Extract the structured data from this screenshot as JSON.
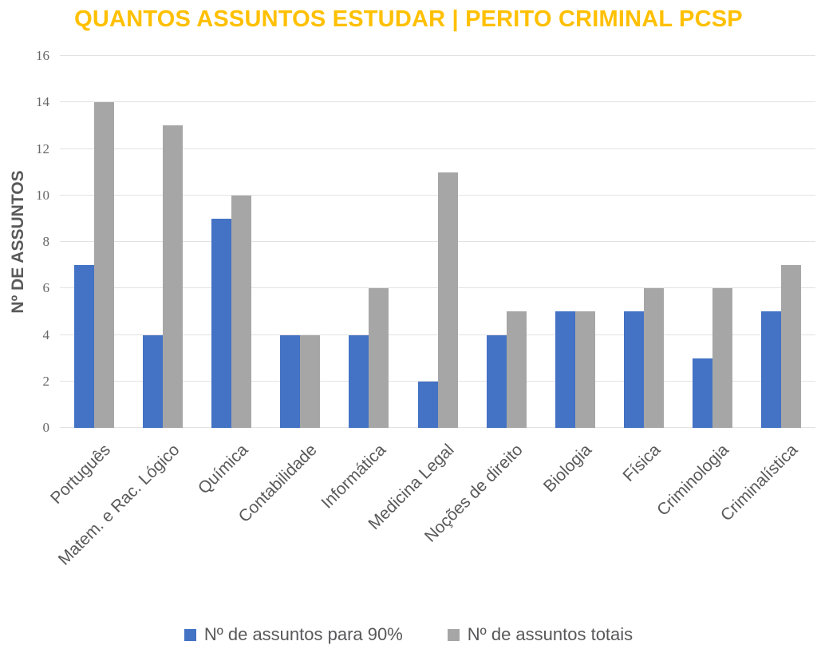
{
  "chart_data": {
    "type": "bar",
    "title": "QUANTOS ASSUNTOS ESTUDAR | PERITO CRIMINAL PCSP",
    "ylabel": "Nº DE ASSUNTOS",
    "xlabel": "",
    "categories": [
      "Português",
      "Matem. e Rac. Lógico",
      "Química",
      "Contabilidade",
      "Informática",
      "Medicina Legal",
      "Noções de direito",
      "Biologia",
      "Física",
      "Criminologia",
      "Criminalística"
    ],
    "series": [
      {
        "name": "Nº de assuntos para 90%",
        "color": "#4472C4",
        "values": [
          7,
          4,
          9,
          4,
          4,
          2,
          4,
          5,
          5,
          3,
          5
        ]
      },
      {
        "name": "Nº de assuntos totais",
        "color": "#A6A6A6",
        "values": [
          14,
          13,
          10,
          4,
          6,
          11,
          5,
          5,
          6,
          6,
          7
        ]
      }
    ],
    "ylim": [
      0,
      16
    ],
    "ytick_step": 2,
    "yticks": [
      0,
      2,
      4,
      6,
      8,
      10,
      12,
      14,
      16
    ],
    "grid": "horizontal",
    "legend_position": "bottom",
    "colors": {
      "title": "#FFC000",
      "axis_title_text": "#595959",
      "tick_text": "#666666",
      "category_text": "#595959",
      "legend_text": "#58585A",
      "gridline": "#E2E2E2",
      "background": "#FFFFFF"
    }
  }
}
